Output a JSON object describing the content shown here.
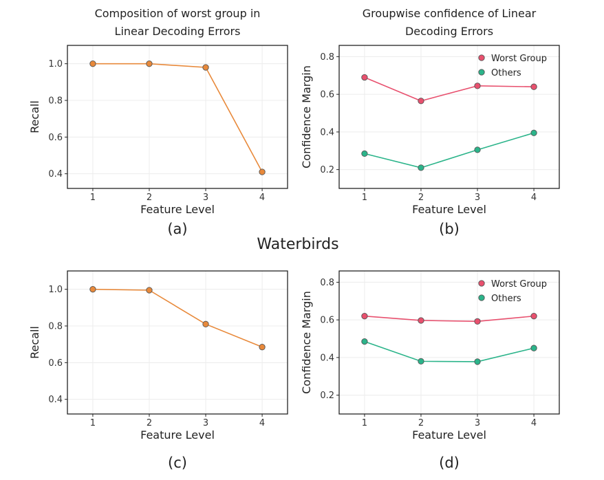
{
  "dataset_label": "Waterbirds",
  "colors": {
    "recall": "#e8893a",
    "worst": "#e8506e",
    "others": "#2bb48a"
  },
  "chart_data": [
    {
      "id": "a",
      "type": "line",
      "title": [
        "Composition of worst group in",
        "Linear Decoding Errors"
      ],
      "caption": "(a)",
      "xlabel": "Feature Level",
      "ylabel": "Recall",
      "x": [
        1,
        2,
        3,
        4
      ],
      "xticks": [
        "1",
        "2",
        "3",
        "4"
      ],
      "xlim": [
        0.55,
        4.45
      ],
      "ylim": [
        0.32,
        1.1
      ],
      "yticks": [
        "0.4",
        "0.6",
        "0.8",
        "1.0"
      ],
      "grid": true,
      "series": [
        {
          "key": "recall",
          "values": [
            1.0,
            1.0,
            0.98,
            0.41
          ]
        }
      ]
    },
    {
      "id": "b",
      "type": "line",
      "title": [
        "Groupwise confidence of Linear",
        "Decoding Errors"
      ],
      "caption": "(b)",
      "xlabel": "Feature Level",
      "ylabel": "Confidence Margin",
      "x": [
        1,
        2,
        3,
        4
      ],
      "xticks": [
        "1",
        "2",
        "3",
        "4"
      ],
      "xlim": [
        0.55,
        4.45
      ],
      "ylim": [
        0.1,
        0.86
      ],
      "yticks": [
        "0.2",
        "0.4",
        "0.6",
        "0.8"
      ],
      "grid": true,
      "legend": "top-right",
      "series": [
        {
          "key": "worst",
          "name": "Worst Group",
          "values": [
            0.69,
            0.565,
            0.645,
            0.64
          ]
        },
        {
          "key": "others",
          "name": "Others",
          "values": [
            0.285,
            0.21,
            0.305,
            0.395
          ]
        }
      ]
    },
    {
      "id": "c",
      "type": "line",
      "title": [],
      "caption": "(c)",
      "xlabel": "Feature Level",
      "ylabel": "Recall",
      "x": [
        1,
        2,
        3,
        4
      ],
      "xticks": [
        "1",
        "2",
        "3",
        "4"
      ],
      "xlim": [
        0.55,
        4.45
      ],
      "ylim": [
        0.32,
        1.1
      ],
      "yticks": [
        "0.4",
        "0.6",
        "0.8",
        "1.0"
      ],
      "grid": true,
      "series": [
        {
          "key": "recall",
          "values": [
            1.0,
            0.995,
            0.81,
            0.685
          ]
        }
      ]
    },
    {
      "id": "d",
      "type": "line",
      "title": [],
      "caption": "(d)",
      "xlabel": "Feature Level",
      "ylabel": "Confidence Margin",
      "x": [
        1,
        2,
        3,
        4
      ],
      "xticks": [
        "1",
        "2",
        "3",
        "4"
      ],
      "xlim": [
        0.55,
        4.45
      ],
      "ylim": [
        0.1,
        0.86
      ],
      "yticks": [
        "0.2",
        "0.4",
        "0.6",
        "0.8"
      ],
      "grid": true,
      "legend": "top-right",
      "series": [
        {
          "key": "worst",
          "name": "Worst Group",
          "values": [
            0.62,
            0.597,
            0.592,
            0.62
          ]
        },
        {
          "key": "others",
          "name": "Others",
          "values": [
            0.485,
            0.38,
            0.378,
            0.45
          ]
        }
      ]
    }
  ]
}
